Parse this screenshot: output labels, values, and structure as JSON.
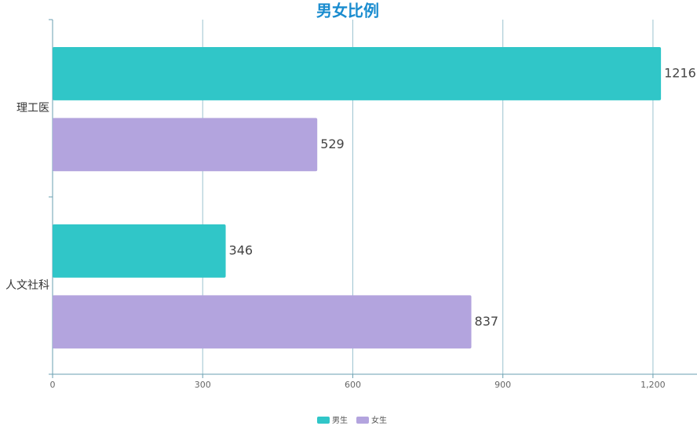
{
  "chart_data": {
    "type": "hbar",
    "title": "男女比例",
    "categories": [
      "理工医",
      "人文社科"
    ],
    "series": [
      {
        "name": "男生",
        "color": "#30c6c8",
        "values": [
          1216,
          346
        ]
      },
      {
        "name": "女生",
        "color": "#b3a4de",
        "values": [
          529,
          837
        ]
      }
    ],
    "xlim": [
      0,
      1288
    ],
    "xticks": [
      0,
      300,
      600,
      900,
      {
        "value": 1200,
        "label": "1,200"
      }
    ],
    "grid": true,
    "legend": "bottom"
  }
}
